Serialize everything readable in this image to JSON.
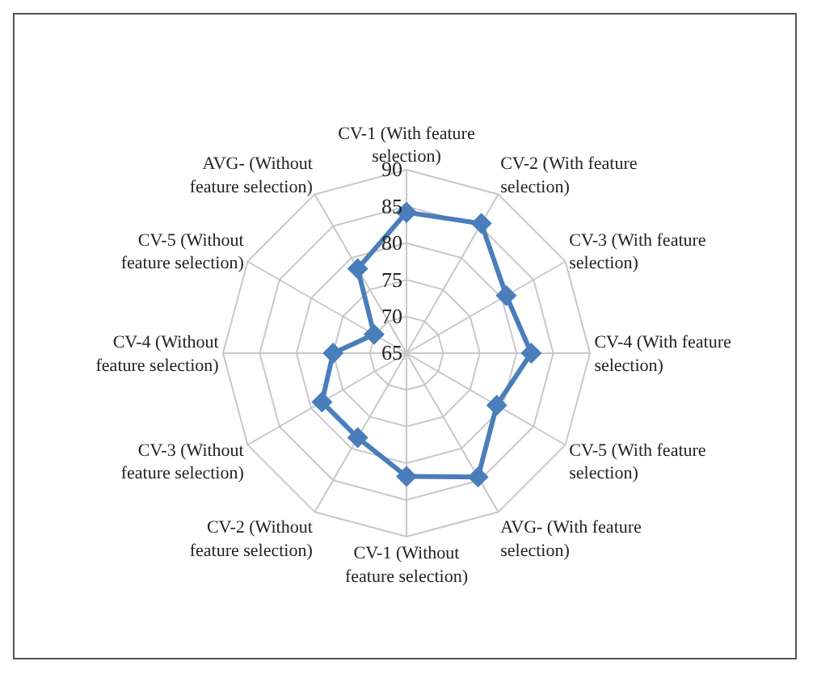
{
  "chart_data": {
    "type": "radar",
    "categories": [
      "CV-1 (With feature selection)",
      "CV-2 (With feature selection)",
      "CV-3 (With feature selection)",
      "CV-4 (With feature selection)",
      "CV-5 (With feature selection)",
      "AVG- (With feature selection)",
      "CV-1 (Without feature selection)",
      "CV-2 (Without feature selection)",
      "CV-3 (Without feature selection)",
      "CV-4 (Without feature selection)",
      "CV-5 (Without feature selection)",
      "AVG- (Without feature selection)"
    ],
    "series": [
      {
        "color": "#4a7ebb",
        "values": [
          84.2,
          85.4,
          80.7,
          82.0,
          79.2,
          84.5,
          81.8,
          78.3,
          78.3,
          75.0,
          70.1,
          78.3
        ]
      }
    ],
    "ylim": [
      65,
      90
    ],
    "yticks": [
      65,
      70,
      75,
      80,
      85,
      90
    ],
    "grid": true,
    "marker": "diamond",
    "line_style": "solid"
  }
}
